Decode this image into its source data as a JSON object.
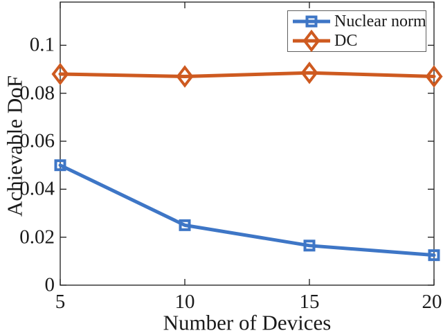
{
  "chart_data": {
    "type": "line",
    "x": [
      5,
      10,
      15,
      20
    ],
    "series": [
      {
        "name": "Nuclear norm",
        "values": [
          0.05,
          0.025,
          0.0165,
          0.0125
        ],
        "color": "#3E76C6",
        "marker": "square"
      },
      {
        "name": "DC",
        "values": [
          0.088,
          0.087,
          0.0885,
          0.087
        ],
        "color": "#CE5A20",
        "marker": "diamond"
      }
    ],
    "title": "",
    "xlabel": "Number of Devices",
    "ylabel": "Achievable DoF",
    "xlim": [
      5,
      20
    ],
    "ylim": [
      0,
      0.118
    ],
    "xticks": [
      5,
      10,
      15,
      20
    ],
    "xtick_labels": [
      "5",
      "10",
      "15",
      "20"
    ],
    "yticks": [
      0,
      0.02,
      0.04,
      0.06,
      0.08,
      0.1
    ],
    "ytick_labels": [
      "0",
      "0.02",
      "0.04",
      "0.06",
      "0.08",
      "0.1"
    ],
    "grid": false,
    "legend_position": "top-right",
    "axis_color": "#1a1a1a",
    "line_width": 5,
    "marker_stroke_width": 4
  },
  "legend": {
    "items": [
      {
        "label": "Nuclear norm"
      },
      {
        "label": "DC"
      }
    ]
  }
}
